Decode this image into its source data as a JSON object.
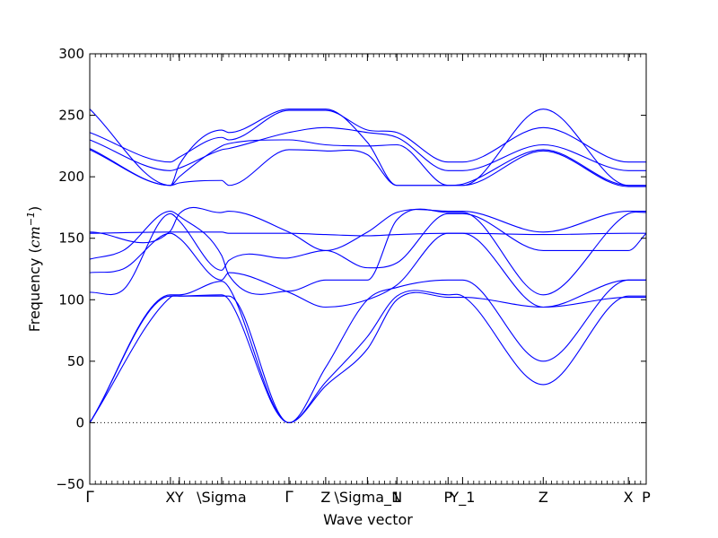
{
  "chart_data": {
    "type": "line",
    "xlabel": "Wave vector",
    "ylabel_text": "Frequency (",
    "ylabel_unit": "cm",
    "ylabel_exp": "−1",
    "ylabel_close": ")",
    "xlim": [
      0,
      1
    ],
    "ylim": [
      -50,
      300
    ],
    "yticks": [
      -50,
      0,
      50,
      100,
      150,
      200,
      250,
      300
    ],
    "ytick_labels": [
      "−50",
      "0",
      "50",
      "100",
      "150",
      "200",
      "250",
      "300"
    ],
    "xticks": [
      {
        "x": 0.0,
        "label": "Γ"
      },
      {
        "x": 0.145,
        "label": "X"
      },
      {
        "x": 0.161,
        "label": "Y"
      },
      {
        "x": 0.237,
        "label": "\\Sigma"
      },
      {
        "x": 0.358,
        "label": "Γ"
      },
      {
        "x": 0.424,
        "label": "Z"
      },
      {
        "x": 0.499,
        "label": "\\Sigma_1"
      },
      {
        "x": 0.552,
        "label": "N"
      },
      {
        "x": 0.644,
        "label": "P"
      },
      {
        "x": 0.67,
        "label": "Y_1"
      },
      {
        "x": 0.815,
        "label": "Z"
      },
      {
        "x": 0.968,
        "label": "X"
      },
      {
        "x": 1.0,
        "label": "P"
      }
    ],
    "zero_line": true,
    "color": "#0000ff",
    "series": [
      {
        "x": [
          0,
          0.145,
          0.161,
          0.237,
          0.25,
          0.358,
          0.424,
          0.499,
          0.552,
          0.644,
          0.67,
          0.815,
          0.968,
          1.0
        ],
        "y": [
          0,
          102,
          103,
          103,
          103,
          0,
          30,
          60,
          100,
          102,
          102,
          94,
          102,
          102
        ]
      },
      {
        "x": [
          0,
          0.145,
          0.161,
          0.237,
          0.25,
          0.358,
          0.424,
          0.499,
          0.552,
          0.644,
          0.67,
          0.815,
          0.968,
          1.0
        ],
        "y": [
          0,
          103,
          103,
          104,
          100,
          0,
          33,
          70,
          103,
          104,
          103,
          31,
          103,
          103
        ]
      },
      {
        "x": [
          0,
          0.145,
          0.161,
          0.237,
          0.25,
          0.358,
          0.424,
          0.499,
          0.552,
          0.644,
          0.67,
          0.815,
          0.968,
          1.0
        ],
        "y": [
          0,
          104,
          104,
          115,
          110,
          0,
          45,
          100,
          110,
          116,
          116,
          50,
          116,
          116
        ]
      },
      {
        "x": [
          0,
          0.06,
          0.145,
          0.161,
          0.237,
          0.25,
          0.358,
          0.424,
          0.499,
          0.552,
          0.644,
          0.67,
          0.815,
          0.968,
          1.0
        ],
        "y": [
          106,
          108,
          170,
          164,
          124,
          132,
          134,
          140,
          126,
          130,
          170,
          170,
          140,
          140,
          154
        ]
      },
      {
        "x": [
          0,
          0.06,
          0.145,
          0.161,
          0.237,
          0.25,
          0.358,
          0.424,
          0.499,
          0.552,
          0.644,
          0.67,
          0.815,
          0.968,
          1.0
        ],
        "y": [
          122,
          125,
          154,
          150,
          116,
          122,
          106,
          94,
          100,
          112,
          154,
          154,
          94,
          116,
          116
        ]
      },
      {
        "x": [
          0,
          0.06,
          0.145,
          0.161,
          0.237,
          0.25,
          0.358,
          0.424,
          0.499,
          0.552,
          0.644,
          0.67,
          0.815,
          0.968,
          1.0
        ],
        "y": [
          133,
          140,
          172,
          168,
          136,
          120,
          107,
          116,
          116,
          165,
          171,
          171,
          104,
          170,
          171
        ]
      },
      {
        "x": [
          0,
          0.145,
          0.161,
          0.237,
          0.25,
          0.358,
          0.424,
          0.499,
          0.552,
          0.644,
          0.67,
          0.815,
          0.968,
          1.0
        ],
        "y": [
          154,
          155,
          155,
          155,
          154,
          154,
          153,
          152,
          153,
          154,
          154,
          153,
          154,
          154
        ]
      },
      {
        "x": [
          0,
          0.145,
          0.161,
          0.237,
          0.25,
          0.358,
          0.424,
          0.499,
          0.552,
          0.644,
          0.67,
          0.815,
          0.968,
          1.0
        ],
        "y": [
          155,
          156,
          170,
          171,
          172,
          155,
          140,
          155,
          171,
          172,
          172,
          155,
          172,
          172
        ]
      },
      {
        "x": [
          0,
          0.145,
          0.161,
          0.237,
          0.25,
          0.358,
          0.424,
          0.499,
          0.552,
          0.644,
          0.67,
          0.815,
          0.968,
          1.0
        ],
        "y": [
          222,
          193,
          195,
          197,
          193,
          222,
          221,
          218,
          193,
          193,
          193,
          221,
          192,
          192
        ]
      },
      {
        "x": [
          0,
          0.145,
          0.161,
          0.237,
          0.25,
          0.358,
          0.424,
          0.499,
          0.552,
          0.644,
          0.67,
          0.815,
          0.968,
          1.0
        ],
        "y": [
          223,
          193,
          200,
          225,
          227,
          230,
          226,
          225,
          226,
          193,
          194,
          222,
          193,
          193
        ]
      },
      {
        "x": [
          0,
          0.145,
          0.161,
          0.237,
          0.25,
          0.358,
          0.424,
          0.499,
          0.552,
          0.644,
          0.67,
          0.815,
          0.968,
          1.0
        ],
        "y": [
          230,
          205,
          207,
          222,
          223,
          236,
          240,
          236,
          232,
          205,
          205,
          226,
          205,
          205
        ]
      },
      {
        "x": [
          0,
          0.145,
          0.161,
          0.237,
          0.25,
          0.358,
          0.424,
          0.499,
          0.552,
          0.644,
          0.67,
          0.815,
          0.968,
          1.0
        ],
        "y": [
          236,
          212,
          216,
          232,
          230,
          254,
          254,
          238,
          236,
          212,
          212,
          240,
          212,
          212
        ]
      },
      {
        "x": [
          0,
          0.145,
          0.161,
          0.237,
          0.25,
          0.358,
          0.424,
          0.499,
          0.552,
          0.644,
          0.67,
          0.815,
          0.968,
          1.0
        ],
        "y": [
          255,
          193,
          210,
          238,
          236,
          255,
          255,
          228,
          193,
          193,
          193,
          255,
          193,
          193
        ]
      }
    ]
  }
}
